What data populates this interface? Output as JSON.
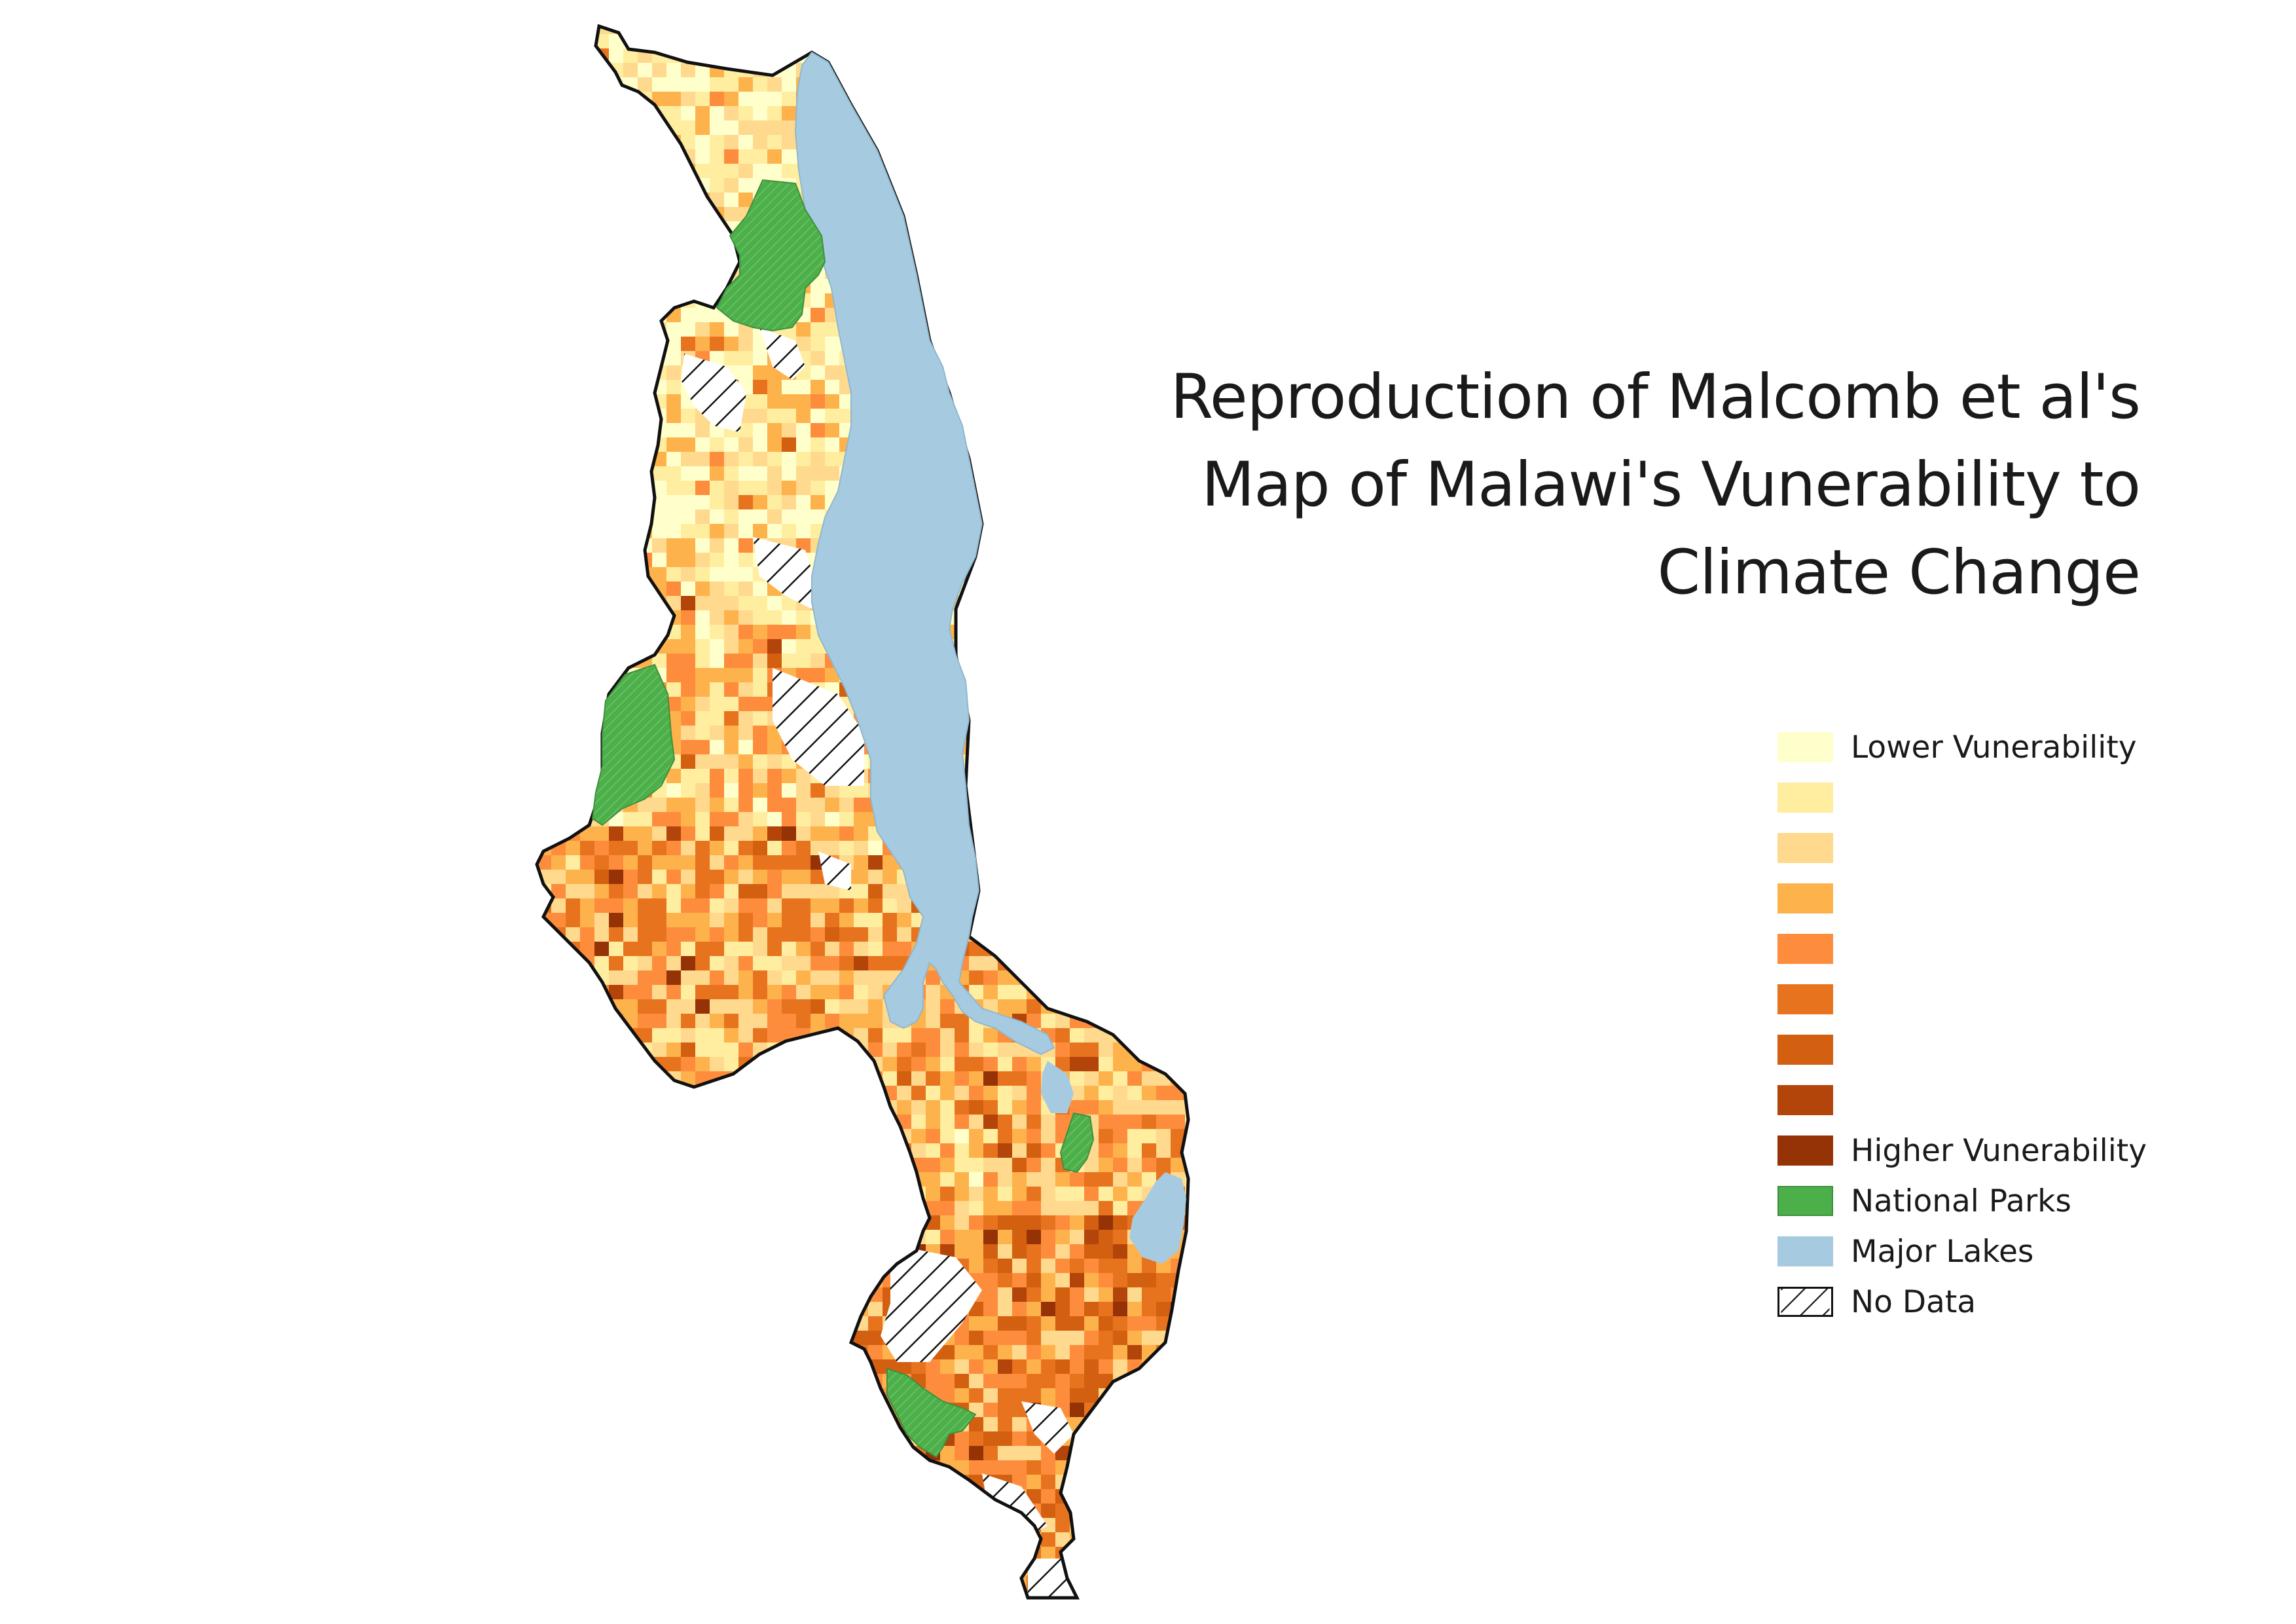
{
  "title": {
    "line1": "Reproduction of Malcomb et al's",
    "line2": "Map of Malawi's Vunerability to",
    "line3": "Climate Change"
  },
  "legend": {
    "classes": [
      {
        "label": "Lower Vunerability",
        "color": "#ffffcc"
      },
      {
        "label": "",
        "color": "#ffeda0"
      },
      {
        "label": "",
        "color": "#fed98e"
      },
      {
        "label": "",
        "color": "#feb24c"
      },
      {
        "label": "",
        "color": "#fd8d3c"
      },
      {
        "label": "",
        "color": "#e8731e"
      },
      {
        "label": "",
        "color": "#d35f10"
      },
      {
        "label": "",
        "color": "#b3440a"
      },
      {
        "label": "Higher Vunerability",
        "color": "#953307"
      }
    ],
    "national_parks": {
      "label": "National Parks",
      "color": "#4daf4a"
    },
    "major_lakes": {
      "label": "Major Lakes",
      "color": "#a6cbe0"
    },
    "no_data": {
      "label": "No Data"
    }
  }
}
